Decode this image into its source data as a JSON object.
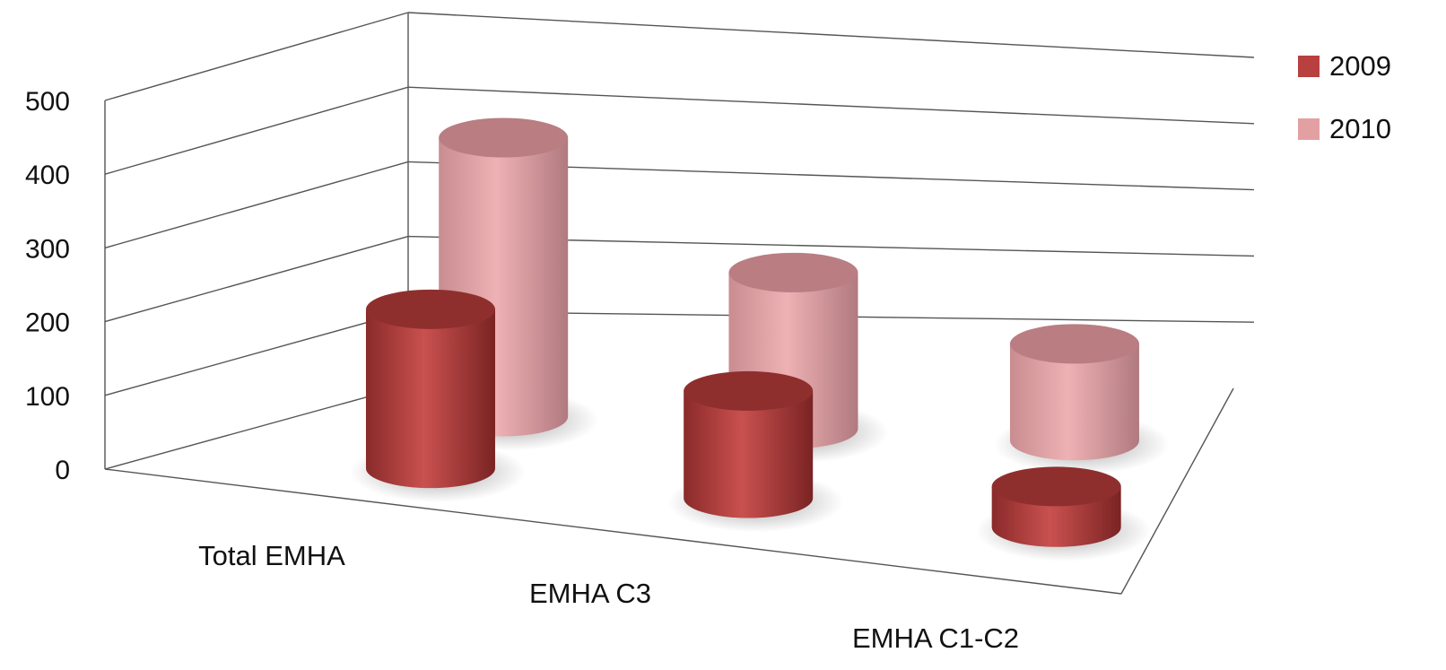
{
  "chart_data": {
    "type": "bar",
    "style": "3d-cylinder",
    "title": "",
    "xlabel": "",
    "ylabel": "",
    "categories": [
      "Total EMHA",
      "EMHA C3",
      "EMHA C1-C2"
    ],
    "series": [
      {
        "name": "2009",
        "values": [
          215,
          145,
          55
        ],
        "color": "#b8403f"
      },
      {
        "name": "2010",
        "values": [
          375,
          210,
          130
        ],
        "color": "#e3a0a3"
      }
    ],
    "ylim": [
      0,
      500
    ],
    "yticks": [
      "0",
      "100",
      "200",
      "300",
      "400",
      "500"
    ],
    "grid": true,
    "legend_position": "top-right"
  }
}
